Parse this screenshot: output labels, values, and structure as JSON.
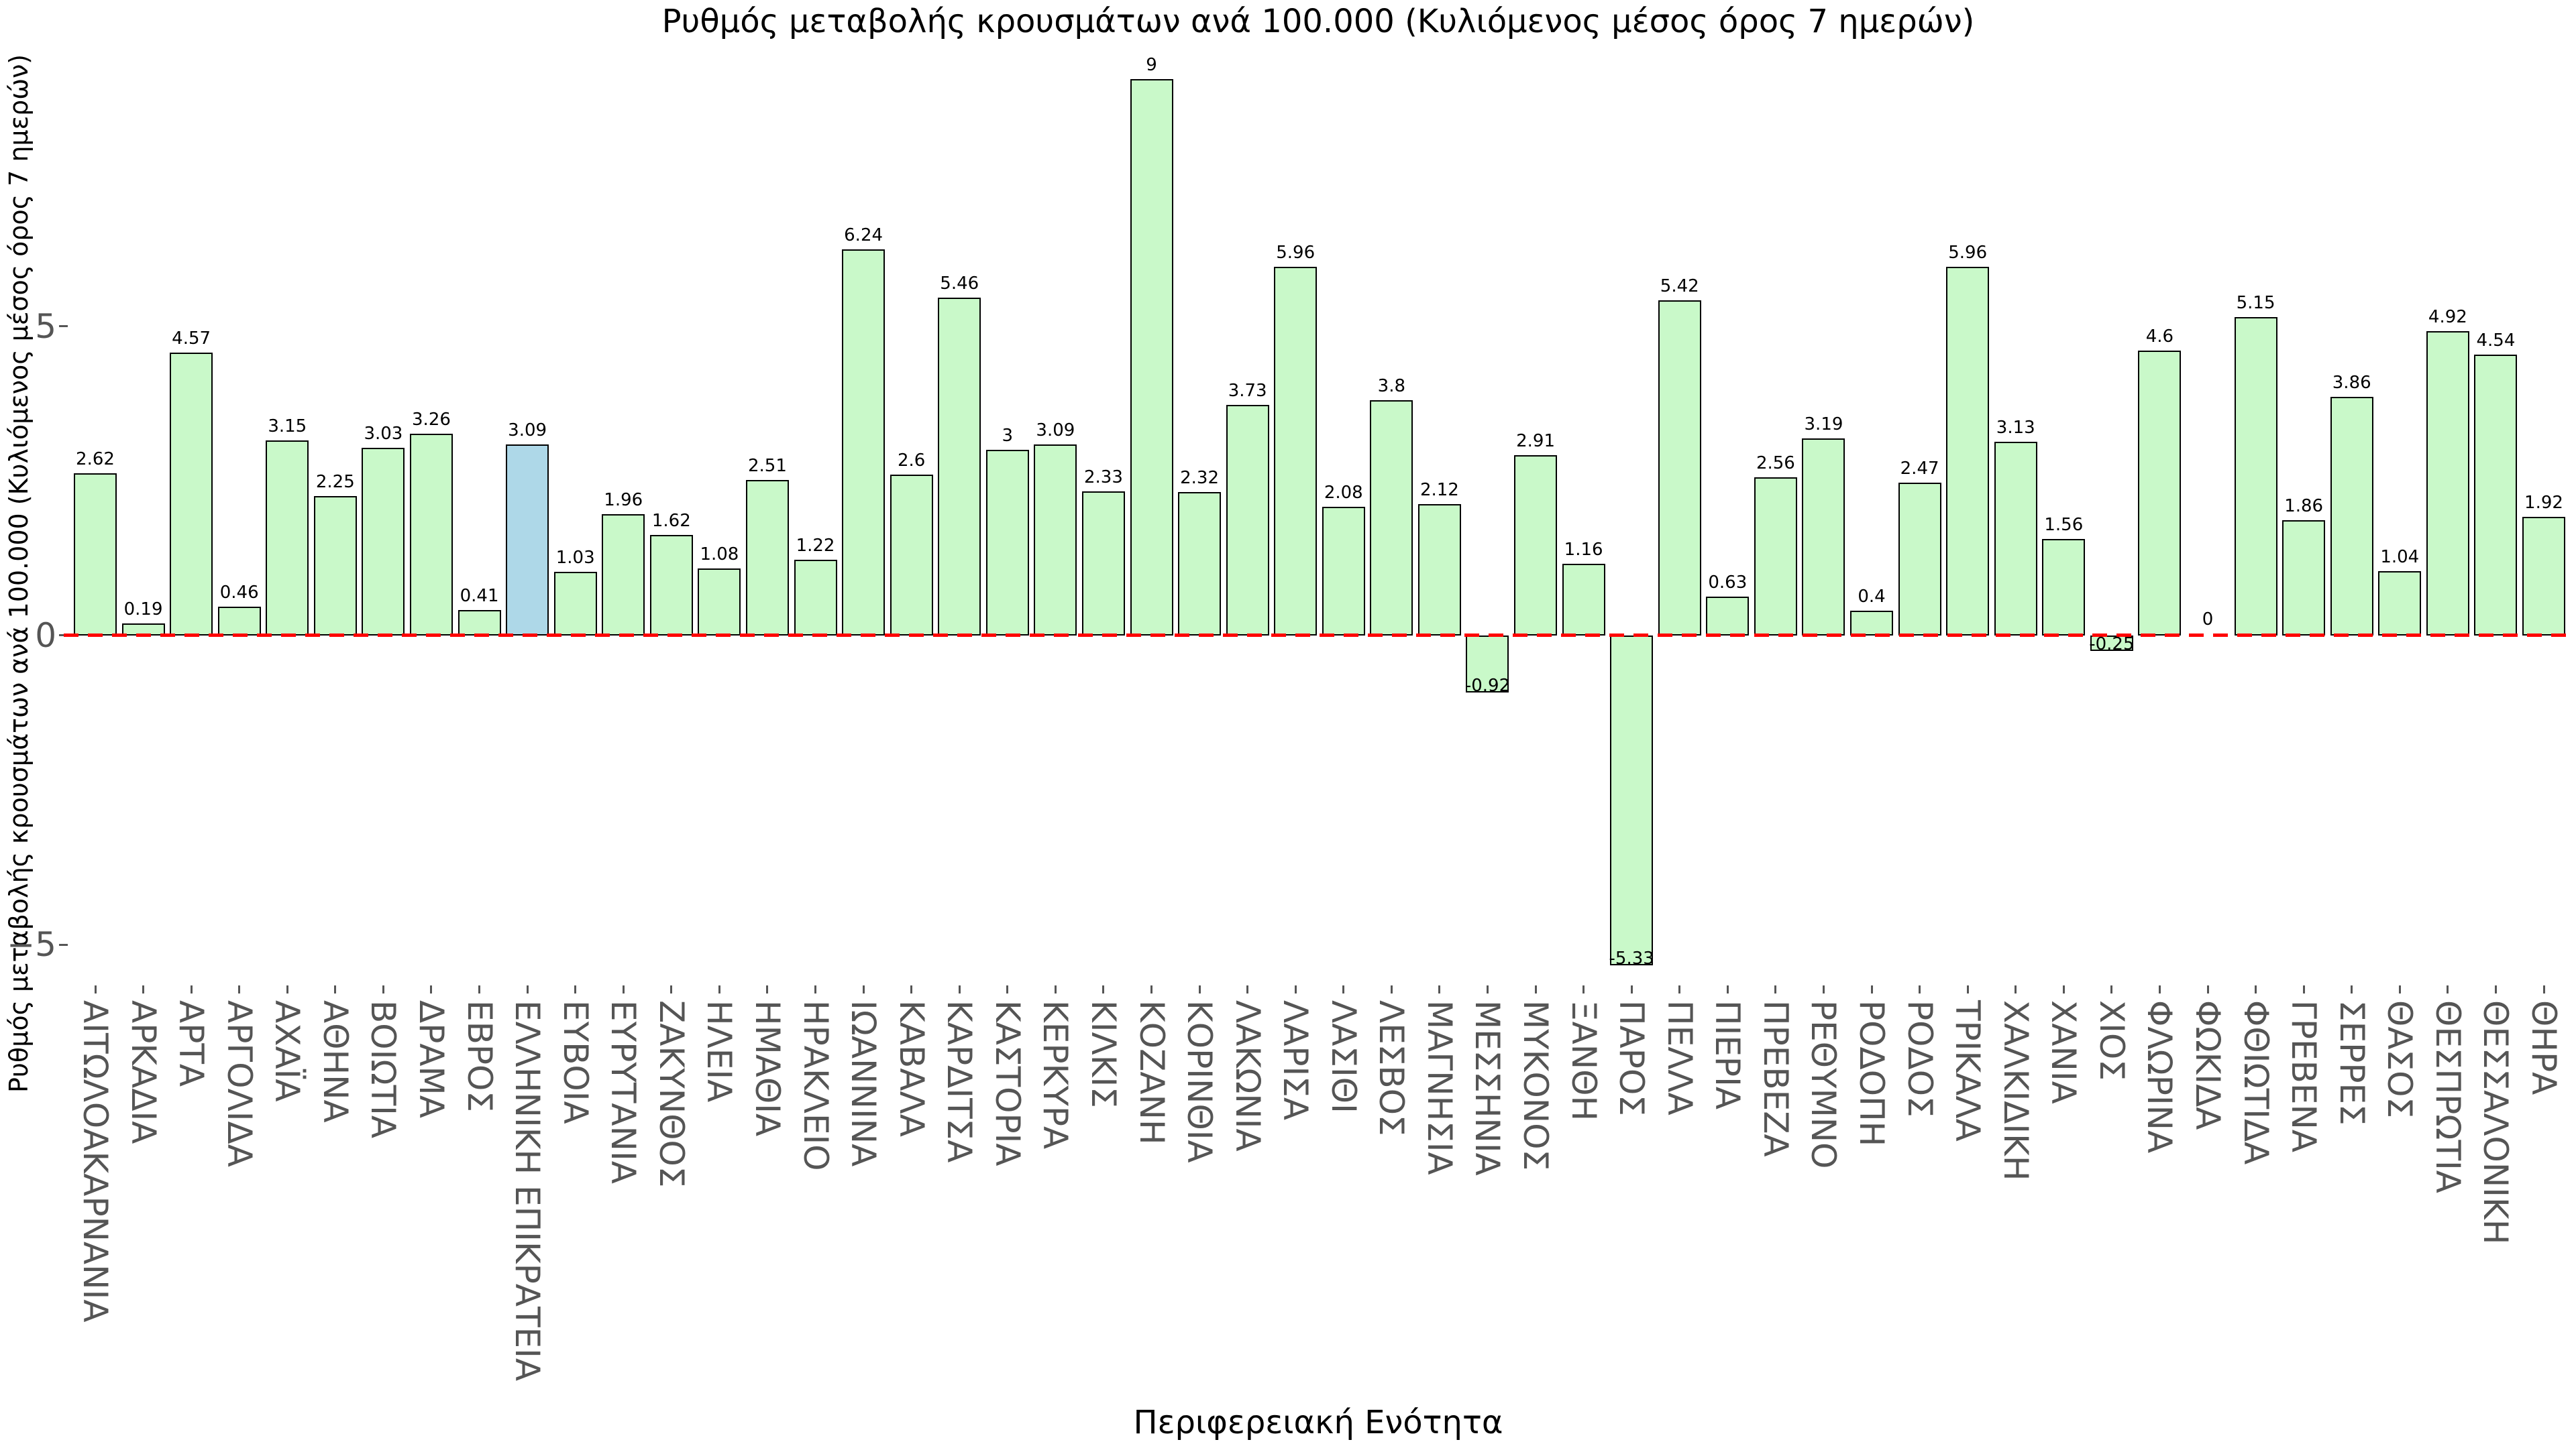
{
  "chart_data": {
    "type": "bar",
    "title": "Ρυθμός μεταβολής κρουσμάτων ανά 100.000 (Κυλιόμενος μέσος όρος 7 ημερών)",
    "xlabel": "Περιφερειακή Ενότητα",
    "ylabel": "Ρυθμός μεταβολής κρουσμάτων ανά 100.000 (Κυλιόμενος μέσος όρος 7 ημερών)",
    "legend": "none",
    "grid": false,
    "ylim": [
      -5.66,
      9.45
    ],
    "yticks": [
      {
        "value": 5,
        "label": "5"
      },
      {
        "value": 0,
        "label": "0"
      },
      {
        "value": -5,
        "label": "−5"
      }
    ],
    "zero_line": {
      "value": 0,
      "style": "dashed",
      "color": "#ff0000"
    },
    "colors": {
      "bar_fill": "#c9f9c9",
      "bar_highlight_fill": "#aed8e8",
      "bar_edge": "#000000",
      "tick_text": "#555555",
      "value_text": "#000000",
      "title_text": "#000000",
      "background": "#ffffff"
    },
    "highlight_category": "ΕΛΛΗΝΙΚΗ ΕΠΙΚΡΑΤΕΙΑ",
    "categories": [
      "ΑΙΤΩΛΟΑΚΑΡΝΑΝΙΑ",
      "ΑΡΚΑΔΙΑ",
      "ΑΡΤΑ",
      "ΑΡΓΟΛΙΔΑ",
      "ΑΧΑΪΑ",
      "ΑΘΗΝΑ",
      "ΒΟΙΩΤΙΑ",
      "ΔΡΑΜΑ",
      "ΕΒΡΟΣ",
      "ΕΛΛΗΝΙΚΗ ΕΠΙΚΡΑΤΕΙΑ",
      "ΕΥΒΟΙΑ",
      "ΕΥΡΥΤΑΝΙΑ",
      "ΖΑΚΥΝΘΟΣ",
      "ΗΛΕΙΑ",
      "ΗΜΑΘΙΑ",
      "ΗΡΑΚΛΕΙΟ",
      "ΙΩΑΝΝΙΝΑ",
      "ΚΑΒΑΛΑ",
      "ΚΑΡΔΙΤΣΑ",
      "ΚΑΣΤΟΡΙΑ",
      "ΚΕΡΚΥΡΑ",
      "ΚΙΛΚΙΣ",
      "ΚΟΖΑΝΗ",
      "ΚΟΡΙΝΘΙΑ",
      "ΛΑΚΩΝΙΑ",
      "ΛΑΡΙΣΑ",
      "ΛΑΣΙΘΙ",
      "ΛΕΣΒΟΣ",
      "ΜΑΓΝΗΣΙΑ",
      "ΜΕΣΣΗΝΙΑ",
      "ΜΥΚΟΝΟΣ",
      "ΞΑΝΘΗ",
      "ΠΑΡΟΣ",
      "ΠΕΛΛΑ",
      "ΠΙΕΡΙΑ",
      "ΠΡΕΒΕΖΑ",
      "ΡΕΘΥΜΝΟ",
      "ΡΟΔΟΠΗ",
      "ΡΟΔΟΣ",
      "ΤΡΙΚΑΛΑ",
      "ΧΑΛΚΙΔΙΚΗ",
      "ΧΑΝΙΑ",
      "ΧΙΟΣ",
      "ΦΛΩΡΙΝΑ",
      "ΦΩΚΙΔΑ",
      "ΦΘΙΩΤΙΔΑ",
      "ΓΡΕΒΕΝΑ",
      "ΣΕΡΡΕΣ",
      "ΘΑΣΟΣ",
      "ΘΕΣΠΡΩΤΙΑ",
      "ΘΕΣΣΑΛΟΝΙΚΗ",
      "ΘΗΡΑ"
    ],
    "values": [
      2.62,
      0.19,
      4.57,
      0.46,
      3.15,
      2.25,
      3.03,
      3.26,
      0.41,
      3.09,
      1.03,
      1.96,
      1.62,
      1.08,
      2.51,
      1.22,
      6.24,
      2.6,
      5.46,
      3,
      3.09,
      2.33,
      9,
      2.32,
      3.73,
      5.96,
      2.08,
      3.8,
      2.12,
      -0.92,
      2.91,
      1.16,
      -5.33,
      5.42,
      0.63,
      2.56,
      3.19,
      0.4,
      2.47,
      5.96,
      3.13,
      1.56,
      -0.25,
      4.6,
      0,
      5.15,
      1.86,
      3.86,
      1.04,
      4.92,
      4.54,
      1.92
    ],
    "value_labels": [
      "2.62",
      "0.19",
      "4.57",
      "0.46",
      "3.15",
      "2.25",
      "3.03",
      "3.26",
      "0.41",
      "3.09",
      "1.03",
      "1.96",
      "1.62",
      "1.08",
      "2.51",
      "1.22",
      "6.24",
      "2.6",
      "5.46",
      "3",
      "3.09",
      "2.33",
      "9",
      "2.32",
      "3.73",
      "5.96",
      "2.08",
      "3.8",
      "2.12",
      "-0.92",
      "2.91",
      "1.16",
      "-5.33",
      "5.42",
      "0.63",
      "2.56",
      "3.19",
      "0.4",
      "2.47",
      "5.96",
      "3.13",
      "1.56",
      "-0.25",
      "4.6",
      "0",
      "5.15",
      "1.86",
      "3.86",
      "1.04",
      "4.92",
      "4.54",
      "1.92"
    ]
  }
}
